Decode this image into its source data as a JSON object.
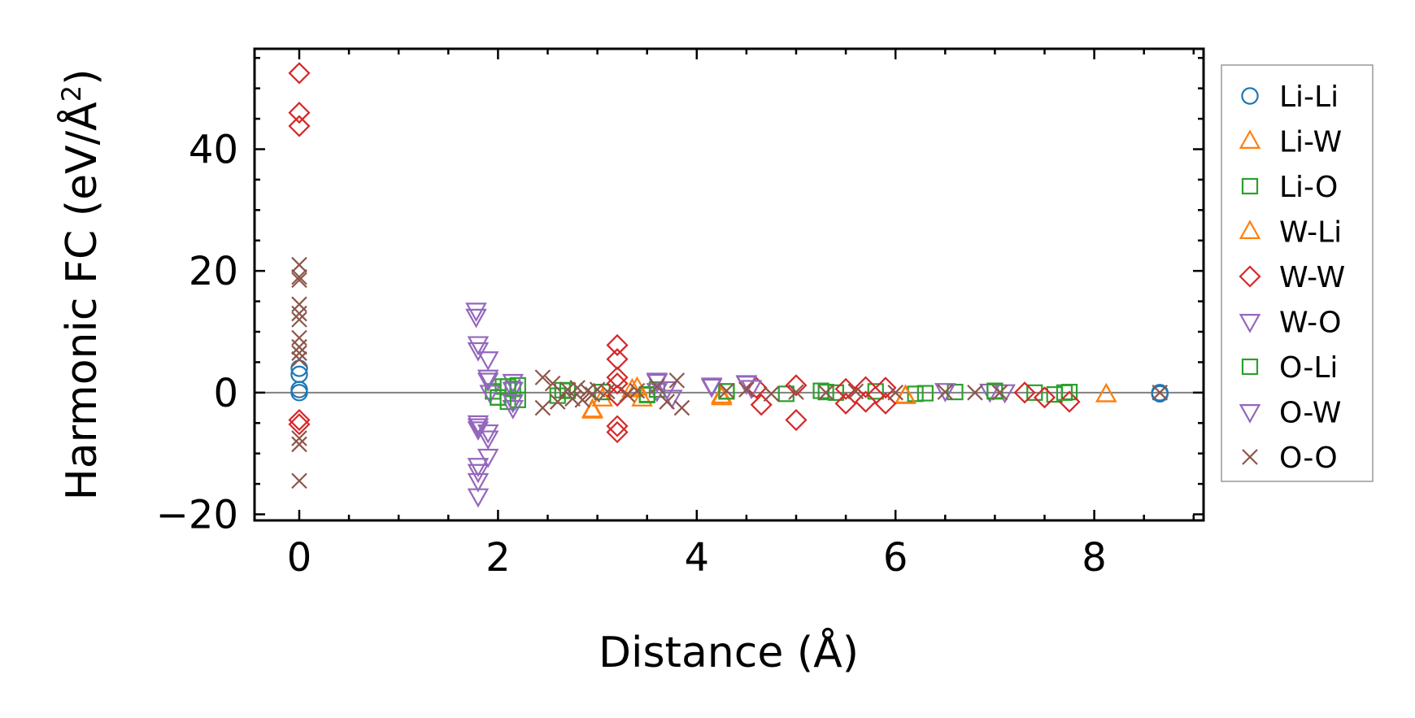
{
  "chart_data": {
    "type": "scatter",
    "xlabel": "Distance (Å)",
    "ylabel_prefix": "Harmonic FC (eV/Å",
    "ylabel_sup": "2",
    "ylabel_suffix": ")",
    "xlim": [
      -0.45,
      9.1
    ],
    "ylim": [
      -21,
      56.5
    ],
    "xticks": [
      0,
      2,
      4,
      6,
      8
    ],
    "xtick_labels": [
      "0",
      "2",
      "4",
      "6",
      "8"
    ],
    "yticks": [
      -20,
      0,
      20,
      40
    ],
    "ytick_labels": [
      "−20",
      "0",
      "20",
      "40"
    ],
    "xminor_step": 0.5,
    "yminor_step": 5,
    "zero_line": true,
    "grid": false,
    "legend_position": "right, outside plot",
    "series": [
      {
        "name": "Li-Li",
        "marker": "circle",
        "color": "#1f77b4",
        "x": [
          0,
          0,
          0,
          0,
          8.66,
          8.66
        ],
        "y": [
          4,
          3,
          0.5,
          0,
          0,
          -0.2
        ]
      },
      {
        "name": "Li-W",
        "marker": "triangle-up",
        "color": "#ff7f0e",
        "x": [
          2.95,
          3.05,
          3.35,
          3.45,
          4.25,
          6.1,
          8.12
        ],
        "y": [
          -2.8,
          -1,
          0.5,
          -1,
          -0.5,
          -0.5,
          -0.3
        ]
      },
      {
        "name": "Li-O",
        "marker": "square",
        "color": "#2ca02c",
        "x": [
          1.95,
          2.0,
          2.05,
          2.1,
          2.15,
          2.2,
          2.6,
          2.7,
          3.05,
          3.5,
          3.6,
          4.3,
          4.9,
          5.25,
          5.4,
          5.8,
          6.2,
          6.6,
          7.0,
          7.4,
          7.6,
          7.75
        ],
        "y": [
          0.2,
          -0.8,
          1.0,
          -1.5,
          0.6,
          1.2,
          -0.5,
          0.3,
          0.1,
          -0.4,
          0.5,
          0.2,
          -0.2,
          0.3,
          0.0,
          0.2,
          -0.2,
          0.1,
          0.3,
          0.0,
          -0.3,
          0.1
        ]
      },
      {
        "name": "W-Li",
        "marker": "triangle-up",
        "color": "#ff7f0e",
        "x": [
          2.95,
          3.4,
          4.25,
          6.1,
          8.12
        ],
        "y": [
          -3,
          0.8,
          -0.8,
          -0.6,
          -0.3
        ]
      },
      {
        "name": "W-W",
        "marker": "diamond",
        "color": "#d62728",
        "x": [
          0,
          0,
          0,
          0,
          0,
          3.2,
          3.2,
          3.2,
          3.2,
          3.2,
          3.2,
          3.2,
          4.6,
          4.65,
          5.0,
          5.0,
          5.5,
          5.5,
          5.7,
          5.7,
          5.9,
          5.9,
          7.3,
          7.5,
          7.75
        ],
        "y": [
          52.5,
          46,
          43.8,
          -4.5,
          -5.2,
          7.8,
          5.5,
          2.5,
          1.5,
          -5.5,
          -6.5,
          -0.5,
          0.8,
          -2,
          1.2,
          -4.5,
          0.6,
          -1.8,
          0.9,
          -1.5,
          0.8,
          -1.8,
          0,
          -0.8,
          -1.5
        ]
      },
      {
        "name": "W-O",
        "marker": "triangle-down",
        "color": "#9467bd",
        "x": [
          1.78,
          1.78,
          1.8,
          1.8,
          1.8,
          1.8,
          1.8,
          1.8,
          1.8,
          1.8,
          1.9,
          1.9,
          1.9,
          1.9,
          1.9,
          1.92,
          2.15,
          2.15,
          2.15,
          3.6,
          3.6,
          3.75,
          4.15,
          4.5,
          4.55,
          6.5,
          6.95,
          7.1
        ],
        "y": [
          13.5,
          12.5,
          8,
          7,
          -5.5,
          -6,
          -12,
          -13,
          -14.5,
          -17,
          5.5,
          2.5,
          -6.5,
          -7.5,
          -10.5,
          0,
          1.8,
          0.5,
          -2.5,
          1.8,
          0.3,
          -0.8,
          1,
          1.6,
          0.8,
          0.3,
          0.2,
          0.1
        ]
      },
      {
        "name": "O-Li",
        "marker": "square",
        "color": "#2ca02c",
        "x": [
          2.0,
          2.1,
          2.2,
          2.65,
          3.5,
          4.3,
          5.3,
          6.3,
          7.0,
          7.7
        ],
        "y": [
          -0.8,
          1.0,
          -1.2,
          0.4,
          -0.3,
          0.2,
          0.1,
          -0.1,
          0.2,
          0
        ]
      },
      {
        "name": "O-W",
        "marker": "triangle-down",
        "color": "#9467bd",
        "x": [
          1.8,
          1.9,
          2.15,
          3.6,
          3.7,
          4.15,
          4.5
        ],
        "y": [
          -5,
          2,
          -1.5,
          2.0,
          0.6,
          1.2,
          1.5
        ]
      },
      {
        "name": "O-O",
        "marker": "x",
        "color": "#8c564b",
        "x": [
          0,
          0,
          0,
          0,
          0,
          0,
          0,
          0,
          0,
          0,
          0,
          0,
          0,
          2.45,
          2.45,
          2.55,
          2.6,
          2.7,
          2.75,
          2.8,
          2.85,
          2.9,
          2.95,
          3.0,
          3.1,
          3.3,
          3.4,
          3.6,
          3.7,
          3.8,
          3.85,
          4.3,
          4.5,
          4.75,
          5.0,
          5.3,
          5.6,
          6.0,
          6.5,
          6.8,
          7.05,
          8.66
        ],
        "y": [
          21,
          19,
          18.5,
          14.5,
          13,
          12,
          9,
          7.5,
          6.5,
          5.5,
          -7.5,
          -8.5,
          -14.5,
          2.5,
          -2.5,
          1.5,
          -1.5,
          0.5,
          -1,
          0.8,
          -1.2,
          0.3,
          -0.3,
          0.5,
          0.2,
          -0.3,
          0.3,
          1.0,
          -1.5,
          2.0,
          -2.5,
          0.3,
          0.5,
          -0.2,
          0.1,
          0,
          0.2,
          0,
          0.1,
          0,
          0,
          0
        ]
      }
    ]
  }
}
